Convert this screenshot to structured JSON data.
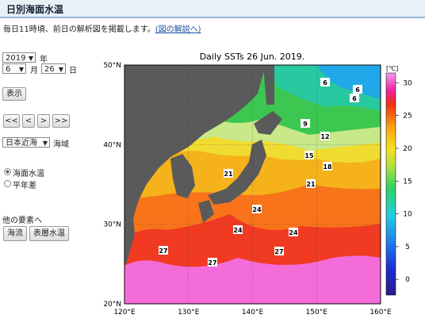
{
  "header": {
    "title": "日別海面水温"
  },
  "intro": {
    "text": "毎日11時頃、前日の解析図を掲載します。",
    "link": "(図の解説へ)"
  },
  "controls": {
    "year": "2019",
    "year_unit": "年",
    "month": "6",
    "month_unit": "月",
    "day": "26",
    "day_unit": "日",
    "show_button": "表示",
    "nav_buttons": [
      "<<",
      "<",
      ">",
      ">>"
    ],
    "region": "日本近海",
    "region_unit": "海域",
    "radios": [
      "海面水温",
      "平年差"
    ],
    "other_label": "他の要素へ",
    "other_buttons": [
      "海流",
      "表層水温"
    ]
  },
  "map": {
    "title": "Daily SSTs 26 Jun. 2019.",
    "lat_labels": [
      "50°N",
      "40°N",
      "30°N",
      "20°N"
    ],
    "lon_labels": [
      "120°E",
      "130°E",
      "140°E",
      "150°E",
      "160°E"
    ],
    "colorbar": {
      "unit": "[℃]",
      "lim": [
        -2.4,
        31.5
      ],
      "ticks": [
        0,
        5,
        10,
        15,
        20,
        25,
        30
      ]
    },
    "contour_labels": [
      "6",
      "6",
      "6",
      "9",
      "12",
      "15",
      "18",
      "21",
      "21",
      "24",
      "24",
      "24",
      "27",
      "27",
      "27"
    ]
  }
}
